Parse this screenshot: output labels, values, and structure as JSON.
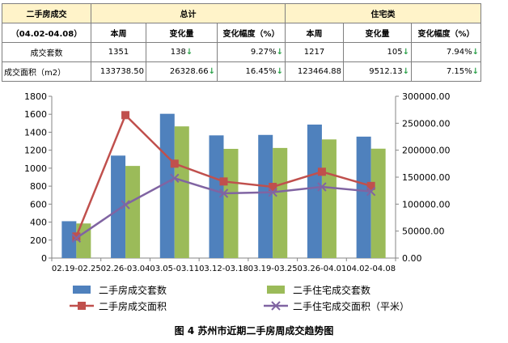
{
  "table": {
    "title": "二手房成交",
    "period": "（04.02-04.08）",
    "group_total": "总计",
    "group_residential": "住宅类",
    "col_this_week": "本周",
    "col_change": "变化量",
    "col_change_pct": "变化幅度（%）",
    "rows": [
      {
        "label": "成交套数",
        "total_week": "1351",
        "total_change": "138",
        "total_pct": "9.27%",
        "res_week": "1217",
        "res_change": "105",
        "res_pct": "7.94%"
      },
      {
        "label": "成交面积（m2）",
        "total_week": "133738.50",
        "total_change": "26328.66",
        "total_pct": "16.45%",
        "res_week": "123464.88",
        "res_change": "9512.13",
        "res_pct": "7.15%"
      }
    ],
    "arrow_icon": "↓",
    "arrow_color": "#2ca24b",
    "header_color": "#fff3c9"
  },
  "chart_data": {
    "type": "bar",
    "categories": [
      "02.19-02.25",
      "02.26-03.04",
      "03.05-03.11",
      "03.12-03.18",
      "03.19-03.25",
      "03.26-04.01",
      "04.02-04.08"
    ],
    "left_axis": {
      "range": [
        0,
        1800
      ],
      "ticks": [
        "0",
        "200",
        "400",
        "600",
        "800",
        "1000",
        "1200",
        "1400",
        "1600",
        "1800"
      ]
    },
    "right_axis": {
      "range": [
        0,
        300000
      ],
      "ticks": [
        "0.00",
        "50000.00",
        "100000.00",
        "150000.00",
        "200000.00",
        "250000.00",
        "300000.00"
      ]
    },
    "grid": false,
    "legend_position": "bottom",
    "series": [
      {
        "name": "二手房成交套数",
        "kind": "bar",
        "axis": "left",
        "color": "#4f81bd",
        "values": [
          410,
          1140,
          1605,
          1365,
          1370,
          1485,
          1351
        ]
      },
      {
        "name": "二手住宅成交套数",
        "kind": "bar",
        "axis": "left",
        "color": "#9bbb59",
        "values": [
          385,
          1025,
          1465,
          1215,
          1225,
          1320,
          1217
        ]
      },
      {
        "name": "二手房成交面积",
        "kind": "line",
        "marker": "square",
        "axis": "right",
        "color": "#c0504d",
        "values": [
          40000,
          265000,
          175000,
          142000,
          132000,
          160000,
          133738.5
        ]
      },
      {
        "name": "二手住宅成交面积（平米）",
        "kind": "line",
        "marker": "x",
        "axis": "right",
        "color": "#8064a2",
        "values": [
          37000,
          99000,
          148000,
          120000,
          122000,
          132000,
          123464.88
        ]
      }
    ]
  },
  "caption": "图 4  苏州市近期二手房周成交趋势图"
}
